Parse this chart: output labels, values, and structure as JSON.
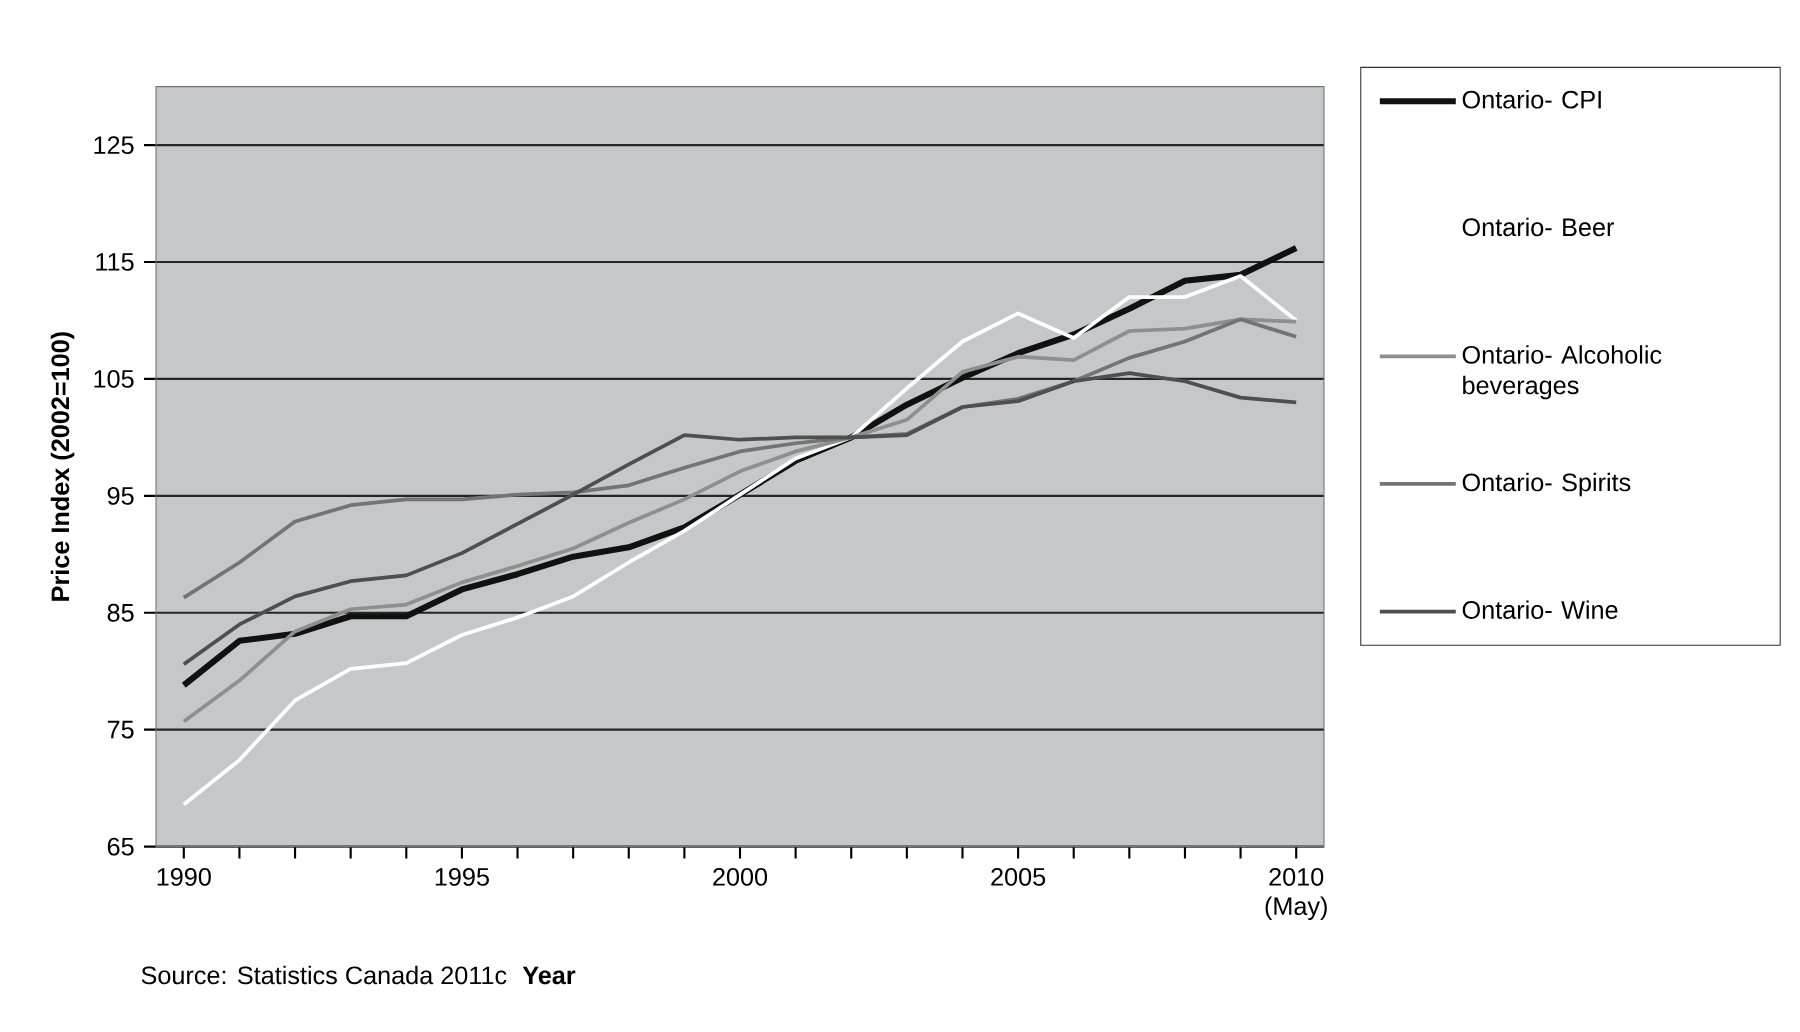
{
  "chart_data": {
    "type": "line",
    "ylabel": "Price Index (2002=100)",
    "xlabel": "Year",
    "annotations": [
      "Source: Statistics Canada 2011c"
    ],
    "x": [
      1990,
      1991,
      1992,
      1993,
      1994,
      1995,
      1996,
      1997,
      1998,
      1999,
      2000,
      2001,
      2002,
      2003,
      2004,
      2005,
      2006,
      2007,
      2008,
      2009,
      2010
    ],
    "xlim": [
      1989.5,
      2010.5
    ],
    "xticks": [
      1990,
      {
        "value": 1991,
        "label": null
      },
      {
        "value": 1992,
        "label": null
      },
      {
        "value": 1993,
        "label": null
      },
      {
        "value": 1994,
        "label": null
      },
      1995,
      {
        "value": 1996,
        "label": null
      },
      {
        "value": 1997,
        "label": null
      },
      {
        "value": 1998,
        "label": null
      },
      {
        "value": 1999,
        "label": null
      },
      2000,
      {
        "value": 2001,
        "label": null
      },
      {
        "value": 2002,
        "label": null
      },
      {
        "value": 2003,
        "label": null
      },
      {
        "value": 2004,
        "label": null
      },
      2005,
      {
        "value": 2006,
        "label": null
      },
      {
        "value": 2007,
        "label": null
      },
      {
        "value": 2008,
        "label": null
      },
      {
        "value": 2009,
        "label": null
      },
      {
        "value": 2010,
        "label": "2010 (May)"
      }
    ],
    "ylim": [
      65,
      130
    ],
    "yticks": [
      65,
      75,
      85,
      95,
      105,
      115,
      125
    ],
    "grid": "y",
    "legend": "right",
    "marker": "none",
    "line_style": "solid",
    "series": [
      {
        "name": "Ontario- CPI",
        "color": "#111111",
        "values": [
          78.8,
          82.6,
          83.2,
          84.7,
          84.7,
          87.0,
          88.3,
          89.8,
          90.6,
          92.3,
          95.1,
          98.0,
          100.0,
          102.8,
          105.1,
          107.2,
          108.8,
          111.0,
          113.4,
          113.9,
          116.2
        ]
      },
      {
        "name": "Ontario- Beer",
        "color": "#ffffff",
        "values": [
          68.6,
          72.4,
          77.5,
          80.2,
          80.7,
          83.1,
          84.6,
          86.4,
          89.3,
          92.0,
          95.1,
          98.2,
          100.0,
          104.2,
          108.2,
          110.6,
          108.5,
          112.0,
          112.0,
          113.8,
          110.0
        ]
      },
      {
        "name": "Ontario- Alcoholic beverages",
        "color": "#8f8f8f",
        "values": [
          75.7,
          79.2,
          83.4,
          85.3,
          85.7,
          87.6,
          89.0,
          90.5,
          92.7,
          94.7,
          97.1,
          98.8,
          100.0,
          101.5,
          105.6,
          106.9,
          106.6,
          109.1,
          109.3,
          110.1,
          109.9
        ]
      },
      {
        "name": "Ontario- Spirits",
        "color": "#747474",
        "values": [
          86.3,
          89.3,
          92.8,
          94.2,
          94.7,
          94.7,
          95.1,
          95.3,
          95.9,
          97.4,
          98.8,
          99.5,
          100.0,
          100.3,
          102.6,
          103.3,
          104.8,
          106.8,
          108.2,
          110.1,
          108.6
        ]
      },
      {
        "name": "Ontario- Wine",
        "color": "#4f4f4f",
        "values": [
          80.6,
          84.0,
          86.4,
          87.7,
          88.2,
          90.1,
          92.6,
          95.1,
          97.7,
          100.2,
          99.8,
          100.0,
          100.0,
          100.2,
          102.6,
          103.1,
          104.8,
          105.5,
          104.8,
          103.4,
          103.0
        ]
      }
    ]
  }
}
